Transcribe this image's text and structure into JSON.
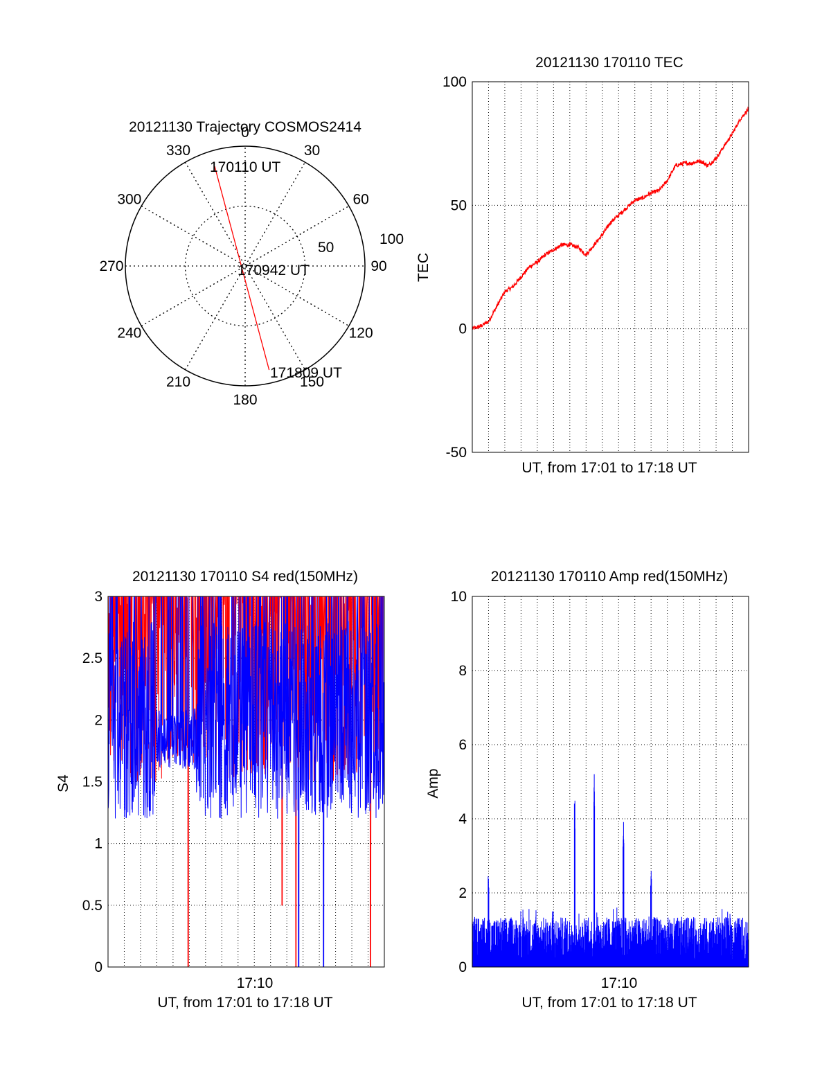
{
  "chart_data": [
    {
      "type": "polar",
      "title": "20121130 Trajectory COSMOS2414",
      "angle_labels": [
        "0",
        "30",
        "60",
        "90",
        "120",
        "150",
        "180",
        "210",
        "240",
        "270",
        "300",
        "330"
      ],
      "radius_labels": [
        "50",
        "100"
      ],
      "radius_max": 100,
      "trajectory": {
        "color": "#ff0000",
        "points": [
          {
            "label": "170110 UT",
            "azimuth": 343,
            "zenith": 87
          },
          {
            "label": "170942 UT",
            "azimuth": 0,
            "zenith": 0
          },
          {
            "label": "171809 UT",
            "azimuth": 167,
            "zenith": 89
          }
        ]
      }
    },
    {
      "type": "line",
      "title": "20121130 170110 TEC",
      "xlabel": "UT, from 17:01 to 17:18 UT",
      "ylabel": "TEC",
      "xlim": [
        "17:01",
        "17:18"
      ],
      "ylim": [
        -50,
        100
      ],
      "yticks": [
        -50,
        0,
        50,
        100
      ],
      "grid": true,
      "series": [
        {
          "color": "#ff0000",
          "x_minutes_after_1701": [
            0,
            0.5,
            1,
            1.5,
            2,
            2.5,
            3,
            3.5,
            4,
            4.5,
            5,
            5.5,
            6,
            6.5,
            7,
            7.5,
            8,
            8.5,
            9,
            9.5,
            10,
            10.5,
            11,
            11.5,
            12,
            12.5,
            13,
            13.5,
            14,
            14.5,
            15,
            15.5,
            16,
            16.5,
            17
          ],
          "values": [
            0,
            1,
            3,
            9,
            15,
            17,
            21,
            25,
            27,
            30,
            32,
            34,
            34,
            33,
            30,
            34,
            38,
            43,
            46,
            49,
            52,
            53,
            55,
            56,
            60,
            66,
            67,
            67,
            68,
            66,
            69,
            74,
            79,
            85,
            89
          ]
        }
      ]
    },
    {
      "type": "line",
      "title": "20121130 170110 S4 red(150MHz)",
      "xlabel": "UT, from 17:01 to 17:18 UT",
      "ylabel": "S4",
      "xlim": [
        "17:01",
        "17:18"
      ],
      "xtick_label": "17:10",
      "ylim": [
        0,
        3
      ],
      "yticks": [
        "0",
        "0.5",
        "1",
        "1.5",
        "2",
        "2.5",
        "3"
      ],
      "grid": true,
      "series": [
        {
          "color": "#ff0000",
          "note_in_plot": "noisy series mostly between 1.5 and 3 with dropouts to 0"
        },
        {
          "color": "#0000ff",
          "note_in_plot": "noisy series mostly between 1.1 and 3"
        }
      ]
    },
    {
      "type": "line",
      "title": "20121130 170110 Amp red(150MHz)",
      "xlabel": "UT, from 17:01 to 17:18 UT",
      "ylabel": "Amp",
      "xlim": [
        "17:01",
        "17:18"
      ],
      "xtick_label": "17:10",
      "ylim": [
        0,
        10
      ],
      "yticks": [
        0,
        2,
        4,
        6,
        8,
        10
      ],
      "grid": true,
      "series": [
        {
          "color": "#0000ff",
          "peaks": [
            {
              "x_minutes_after_1701": 1.0,
              "value": 2.45
            },
            {
              "x_minutes_after_1701": 6.3,
              "value": 4.5
            },
            {
              "x_minutes_after_1701": 7.5,
              "value": 5.65
            },
            {
              "x_minutes_after_1701": 9.3,
              "value": 4.15
            },
            {
              "x_minutes_after_1701": 11.0,
              "value": 2.6
            }
          ],
          "baseline_range": [
            0,
            1.5
          ]
        }
      ]
    }
  ]
}
